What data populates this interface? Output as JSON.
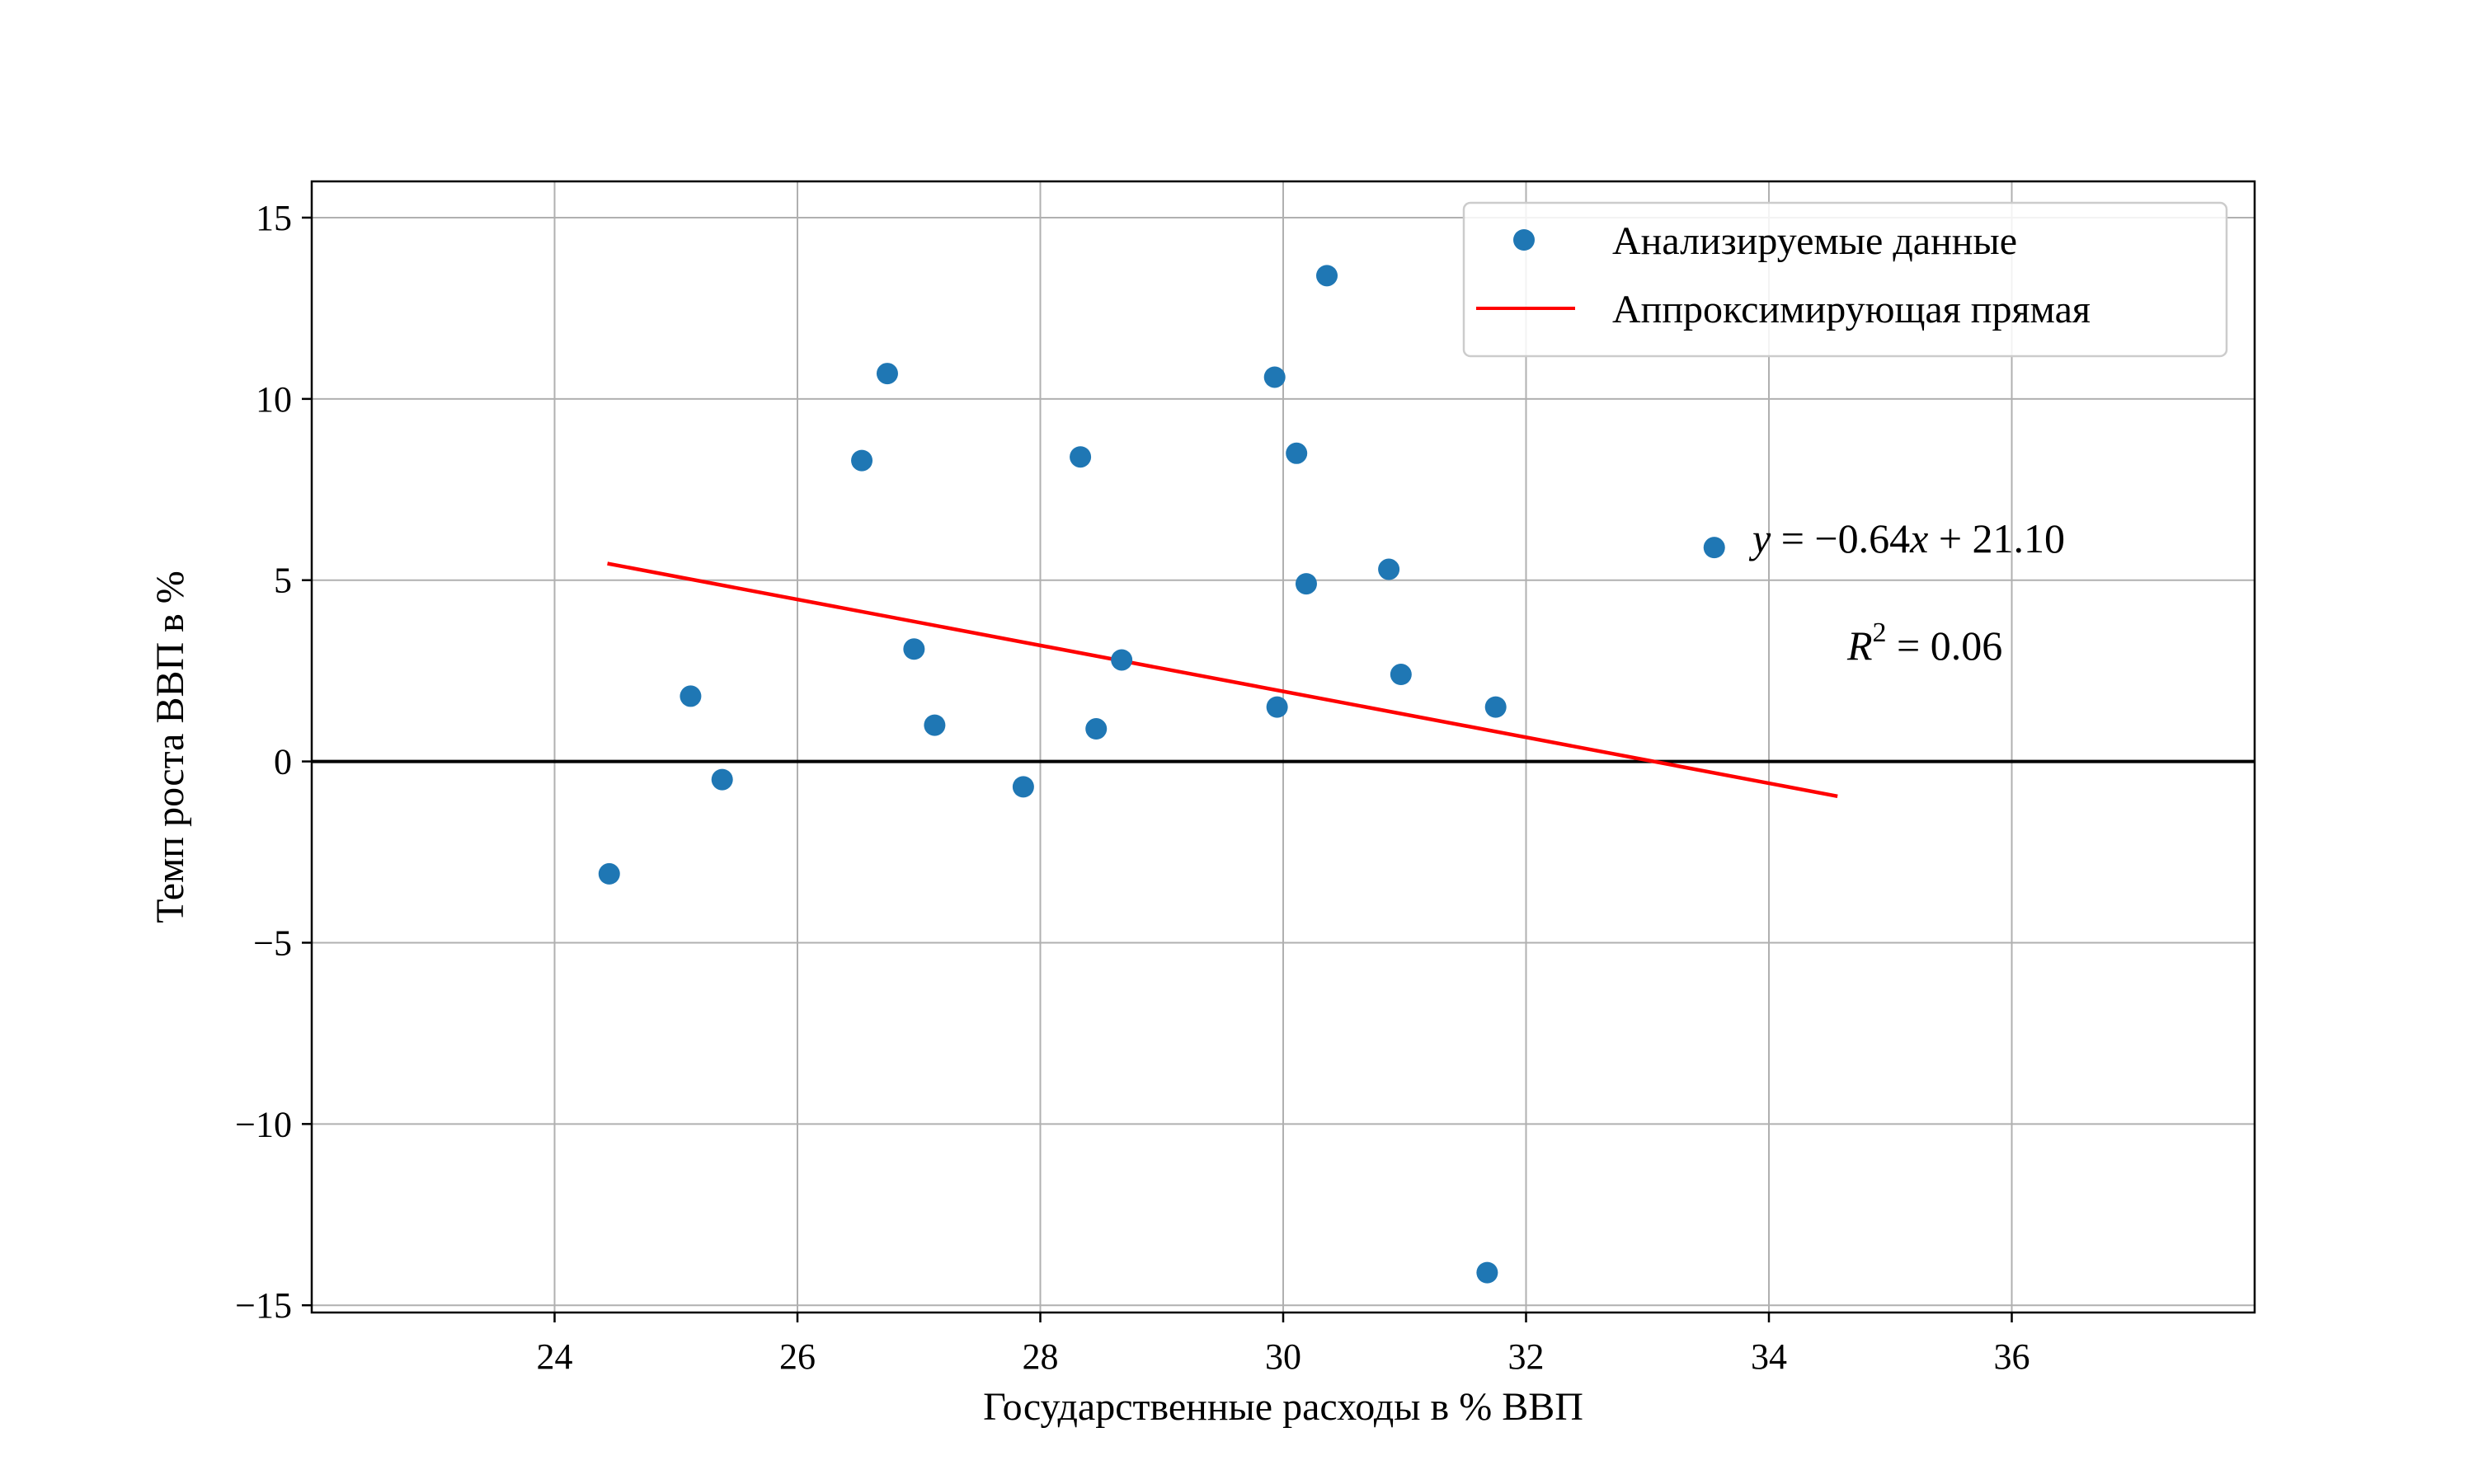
{
  "chart_data": {
    "type": "scatter",
    "xlabel": "Государственные расходы в % ВВП",
    "ylabel": "Темп роста ВВП в %",
    "xlim": [
      22.0,
      38.0
    ],
    "ylim": [
      -15.2,
      16.0
    ],
    "xticks": [
      24,
      26,
      28,
      30,
      32,
      34,
      36
    ],
    "yticks": [
      -15,
      -10,
      -5,
      0,
      5,
      10,
      15
    ],
    "grid": true,
    "legend_position": "top-right",
    "colors": {
      "points": "#1f77b4",
      "fit_line": "#ff0000",
      "zero_line": "#000000",
      "grid": "#b0b0b0"
    },
    "series": [
      {
        "name": "Анализируемые данные",
        "kind": "scatter",
        "points": [
          {
            "x": 24.45,
            "y": -3.1
          },
          {
            "x": 25.12,
            "y": 1.8
          },
          {
            "x": 25.38,
            "y": -0.5
          },
          {
            "x": 26.53,
            "y": 8.3
          },
          {
            "x": 26.74,
            "y": 10.7
          },
          {
            "x": 26.96,
            "y": 3.1
          },
          {
            "x": 27.13,
            "y": 1.0
          },
          {
            "x": 27.86,
            "y": -0.7
          },
          {
            "x": 28.33,
            "y": 8.4
          },
          {
            "x": 28.46,
            "y": 0.9
          },
          {
            "x": 28.67,
            "y": 2.8
          },
          {
            "x": 29.93,
            "y": 10.6
          },
          {
            "x": 29.95,
            "y": 1.5
          },
          {
            "x": 30.11,
            "y": 8.5
          },
          {
            "x": 30.19,
            "y": 4.9
          },
          {
            "x": 30.36,
            "y": 13.4
          },
          {
            "x": 30.87,
            "y": 5.3
          },
          {
            "x": 30.97,
            "y": 2.4
          },
          {
            "x": 31.68,
            "y": -14.1
          },
          {
            "x": 31.75,
            "y": 1.5
          }
        ]
      },
      {
        "name": "Аппроксимирующая прямая",
        "kind": "line",
        "x": [
          24.45,
          34.55
        ],
        "y": [
          5.45,
          -0.95
        ]
      }
    ],
    "annotations": {
      "equation": {
        "lhs": "y",
        "eq": " = −0.64",
        "var": "x",
        "rhs": " + 21.10",
        "marker_x": 33.55,
        "marker_y": 5.9
      },
      "r2": {
        "lhs": "R",
        "sup": "2",
        "rhs": " = 0.06"
      }
    }
  }
}
